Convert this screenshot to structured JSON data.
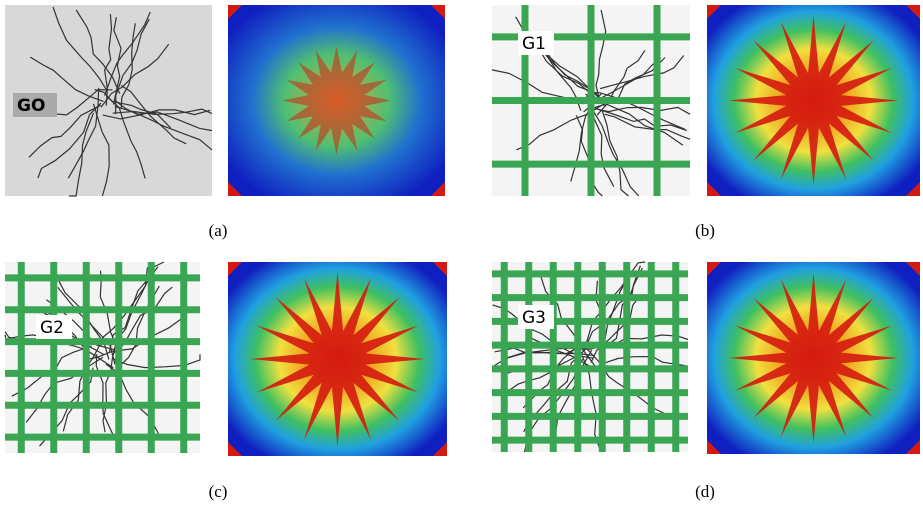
{
  "panels": [
    {
      "photo_label": "GO",
      "caption": "(a)"
    },
    {
      "photo_label": "G1",
      "caption": "(b)"
    },
    {
      "photo_label": "G2",
      "caption": "(c)"
    },
    {
      "photo_label": "G3",
      "caption": "(d)"
    }
  ]
}
